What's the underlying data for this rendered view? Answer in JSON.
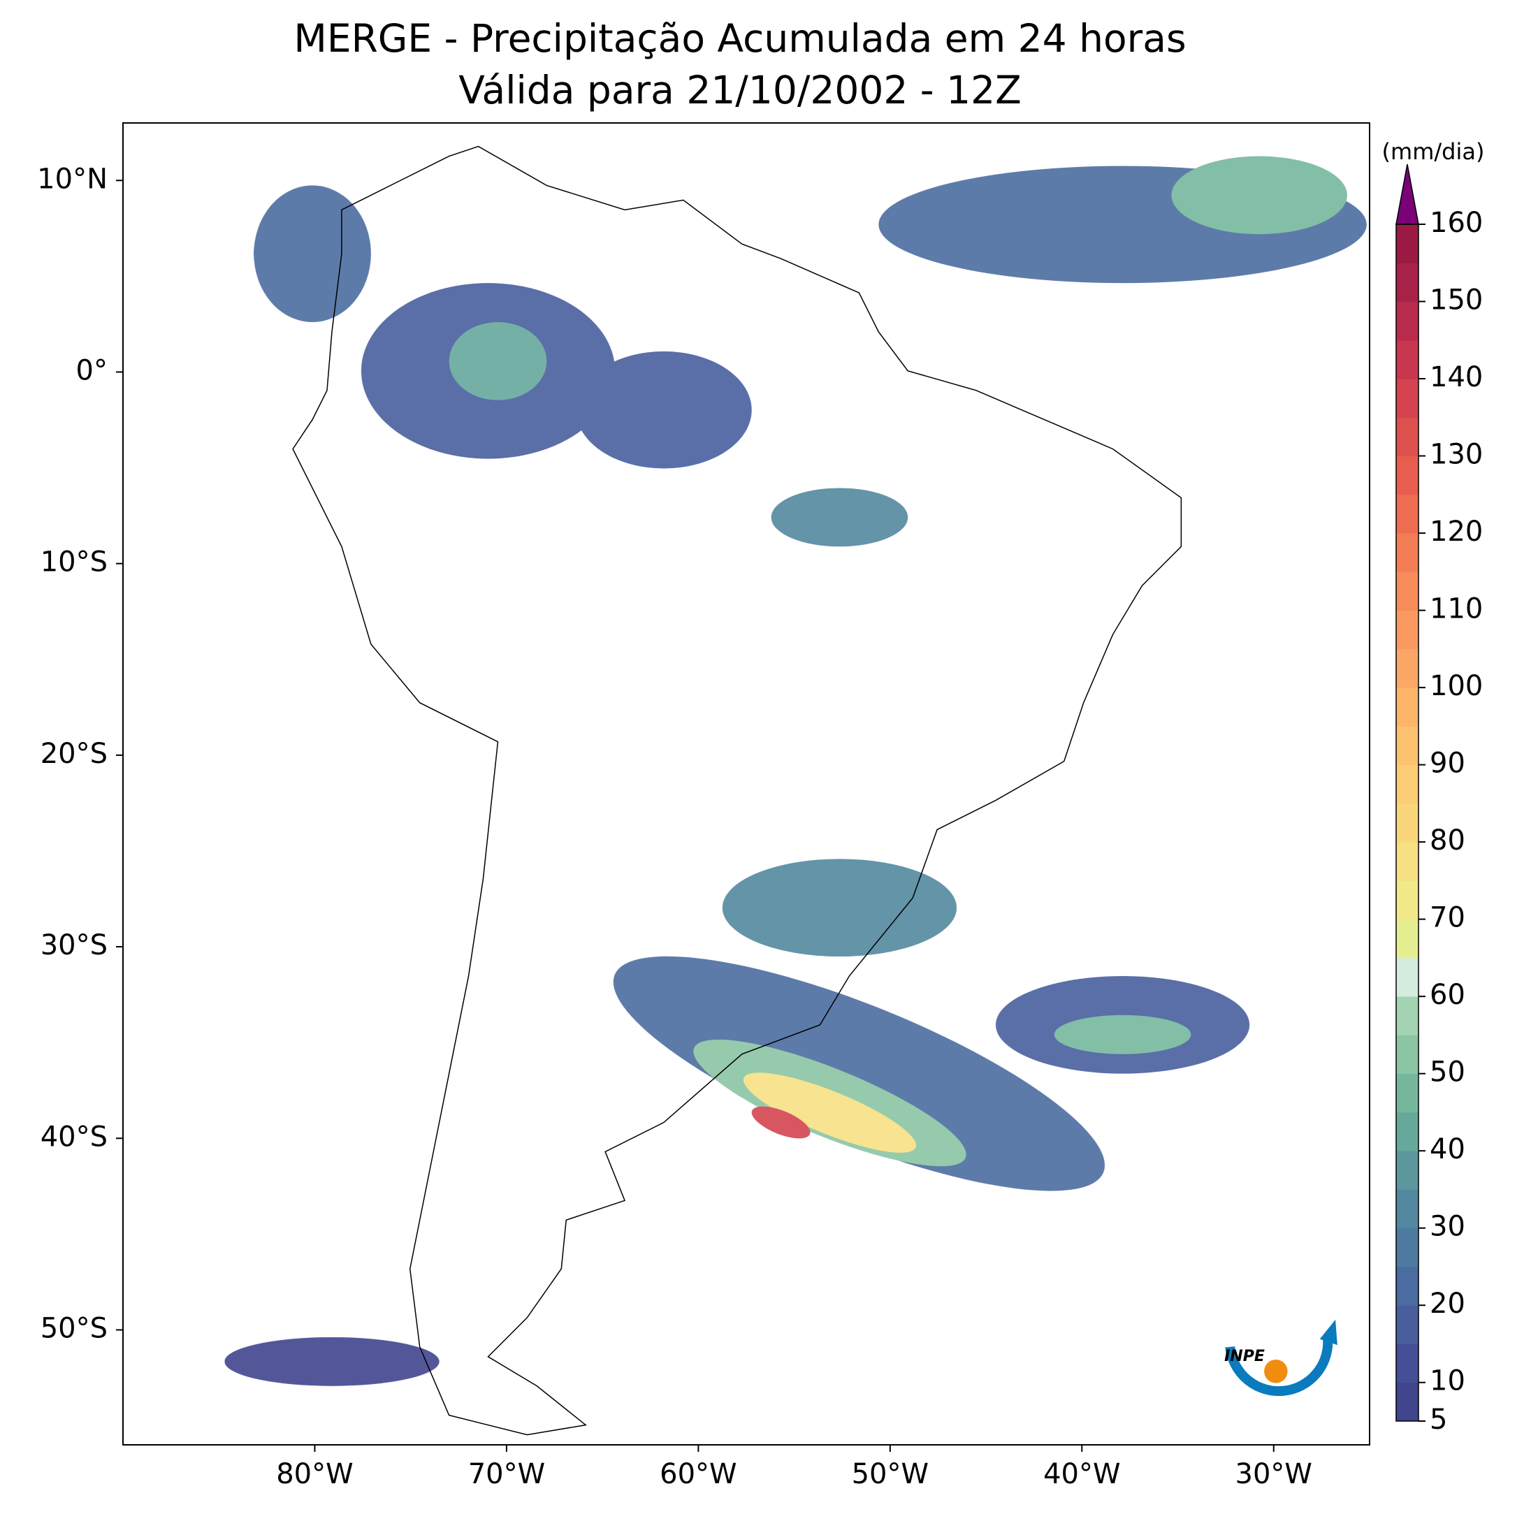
{
  "chart_data": {
    "type": "map",
    "title": "MERGE - Precipitação Acumulada em 24 horas",
    "subtitle": "Válida para 21/10/2002 - 12Z",
    "xlim": [
      -90,
      -25
    ],
    "ylim": [
      -56,
      13
    ],
    "xticks": [
      {
        "value": -80,
        "label": "80°W"
      },
      {
        "value": -70,
        "label": "70°W"
      },
      {
        "value": -60,
        "label": "60°W"
      },
      {
        "value": -50,
        "label": "50°W"
      },
      {
        "value": -40,
        "label": "40°W"
      },
      {
        "value": -30,
        "label": "30°W"
      }
    ],
    "yticks": [
      {
        "value": 10,
        "label": "10°N"
      },
      {
        "value": 0,
        "label": "0°"
      },
      {
        "value": -10,
        "label": "10°S"
      },
      {
        "value": -20,
        "label": "20°S"
      },
      {
        "value": -30,
        "label": "30°S"
      },
      {
        "value": -40,
        "label": "40°S"
      },
      {
        "value": -50,
        "label": "50°S"
      }
    ],
    "colorbar": {
      "label": "(mm/dia)",
      "levels": [
        5,
        10,
        15,
        20,
        25,
        30,
        35,
        40,
        45,
        50,
        55,
        60,
        65,
        70,
        75,
        80,
        85,
        90,
        95,
        100,
        105,
        110,
        115,
        120,
        125,
        130,
        135,
        140,
        145,
        150,
        155,
        160
      ],
      "colors": [
        "#40458e",
        "#444f97",
        "#485e9d",
        "#4b6ca0",
        "#4e7a9f",
        "#52889f",
        "#5a989e",
        "#66a89c",
        "#75b79d",
        "#8bc5a4",
        "#a4d3b1",
        "#d3ecde",
        "#e6ee92",
        "#f1e98a",
        "#f7e084",
        "#f9d67a",
        "#fbcd74",
        "#fcc270",
        "#fdb56a",
        "#fca765",
        "#fa9a60",
        "#f78c5b",
        "#f37d55",
        "#ee6d50",
        "#e75e4e",
        "#de504e",
        "#d4434f",
        "#c8374f",
        "#b82b4c",
        "#a82148",
        "#9b1a43"
      ],
      "extend_color": "#7a0177",
      "ticks": [
        5,
        10,
        20,
        30,
        40,
        50,
        60,
        70,
        80,
        90,
        100,
        110,
        120,
        130,
        140,
        150,
        160
      ]
    },
    "logo": "INPE"
  }
}
